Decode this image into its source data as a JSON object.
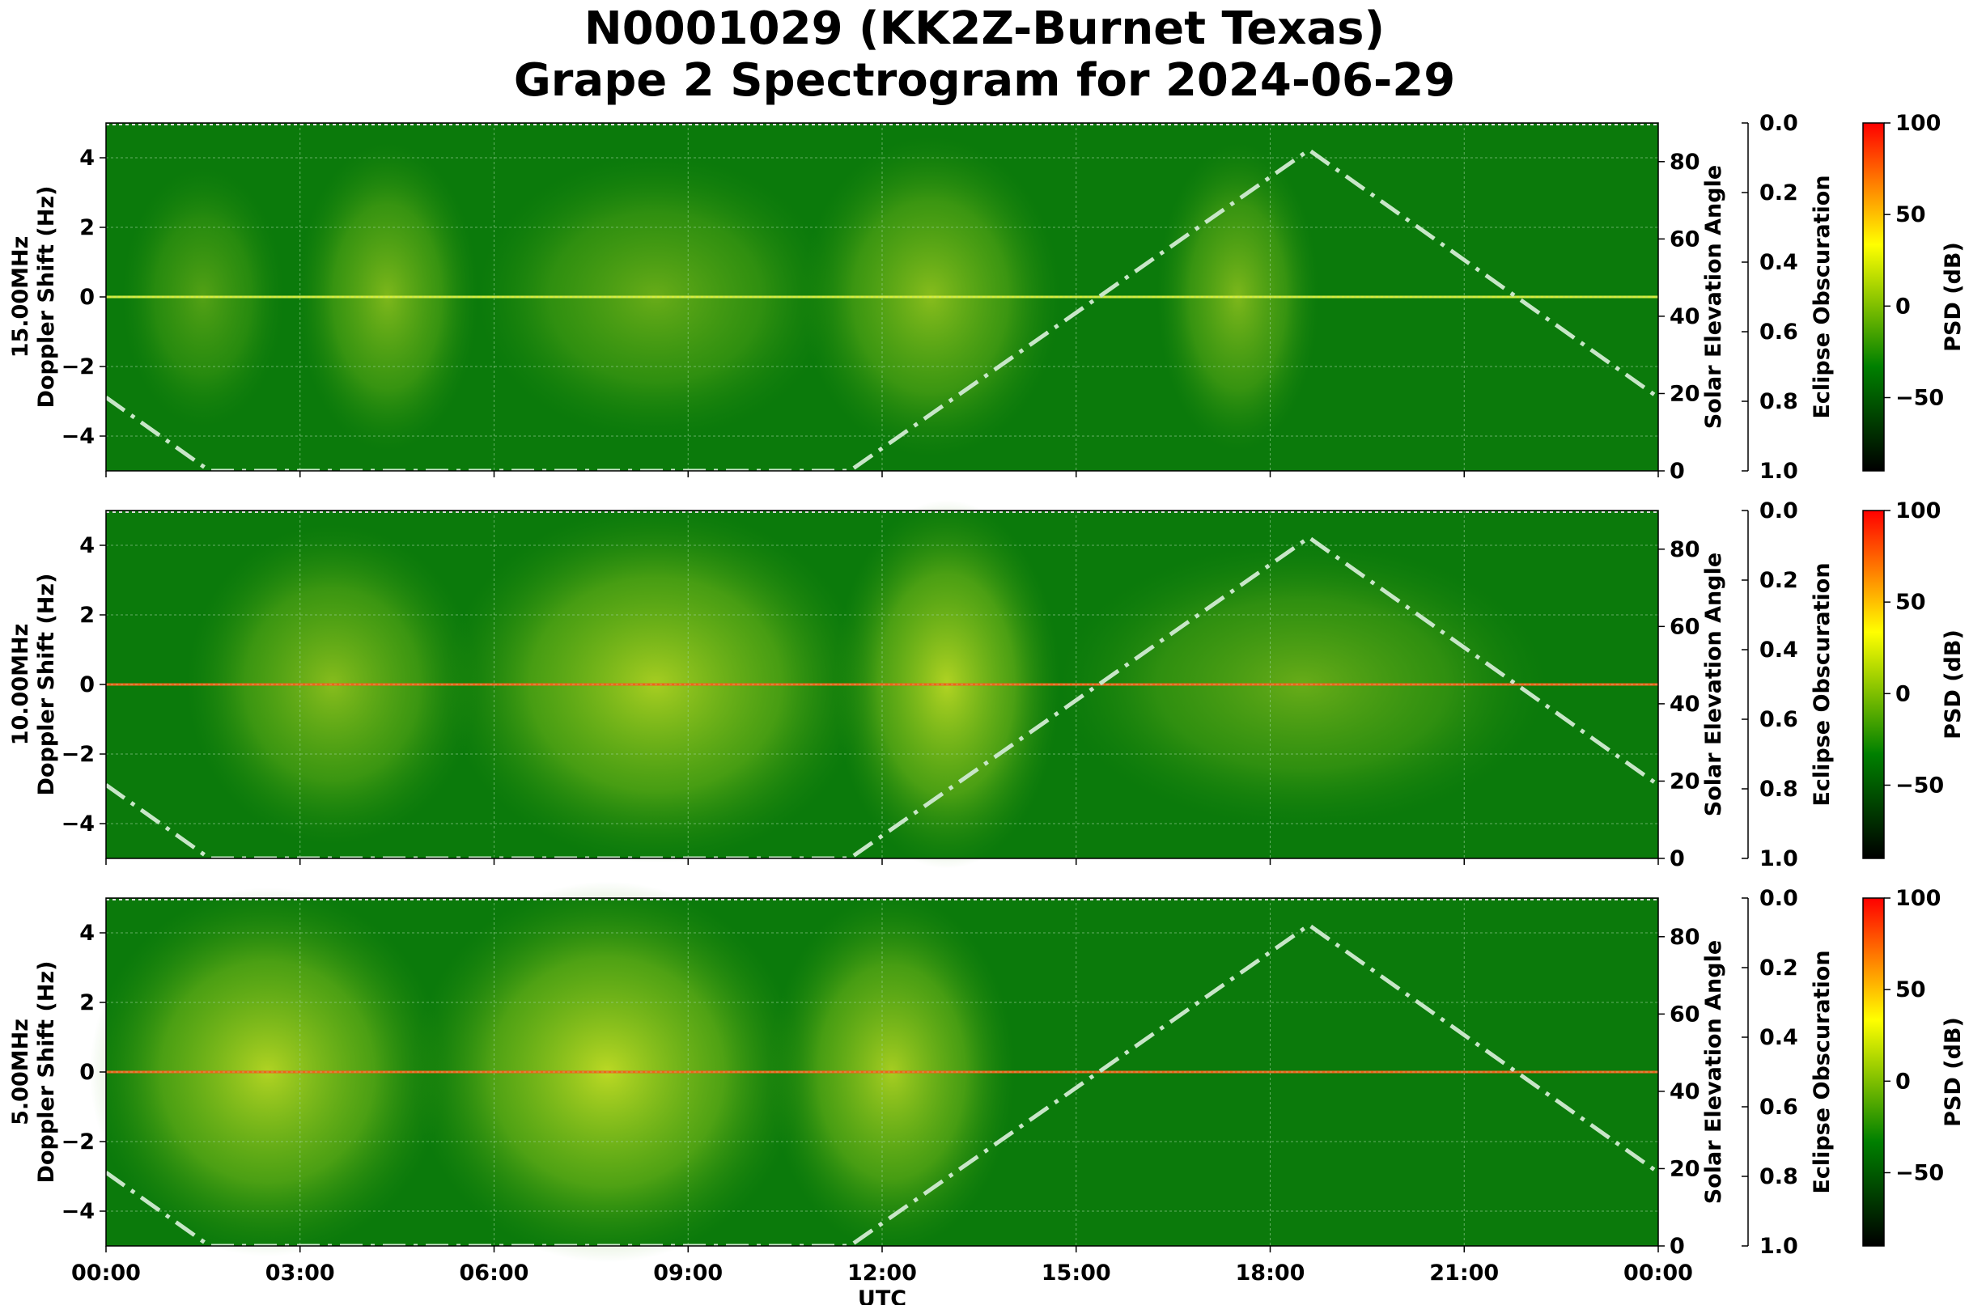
{
  "figure": {
    "title_line1": "N0001029 (KK2Z-Burnet Texas)",
    "title_line2": "Grape 2 Spectrogram for 2024-06-29"
  },
  "chart_data": {
    "type": "heatmap",
    "x_axis": {
      "label": "UTC",
      "range_hours": [
        0,
        24
      ],
      "ticks": [
        "00:00",
        "03:00",
        "06:00",
        "09:00",
        "12:00",
        "15:00",
        "18:00",
        "21:00",
        "00:00"
      ]
    },
    "y_axis": {
      "label": "Doppler Shift (Hz)",
      "range": [
        -5,
        5
      ],
      "ticks": [
        4,
        2,
        0,
        -2,
        -4
      ]
    },
    "right_axis_1": {
      "label": "Solar Elevation Angle",
      "range": [
        0,
        90
      ],
      "ticks": [
        0,
        20,
        40,
        60,
        80
      ]
    },
    "right_axis_2": {
      "label": "Eclipse Obscuration",
      "range": [
        1.0,
        0.0
      ],
      "ticks": [
        "0.0",
        "0.2",
        "0.4",
        "0.6",
        "0.8",
        "1.0"
      ]
    },
    "colorbar": {
      "label": "PSD (dB)",
      "range": [
        -90,
        100
      ],
      "ticks": [
        "100",
        "50",
        "0",
        "−50"
      ],
      "tick_values": [
        100,
        50,
        0,
        -50
      ],
      "colors": [
        "#000000",
        "#008000",
        "#ffff00",
        "#ff0000"
      ]
    },
    "grid": true,
    "solar_elevation_curve": {
      "style": "dash-dot",
      "color": "#c8e6c8",
      "points_hours_degrees": [
        [
          0,
          19
        ],
        [
          1.6,
          0
        ],
        [
          11.5,
          0
        ],
        [
          18.6,
          83
        ],
        [
          24,
          19
        ]
      ]
    },
    "panels": [
      {
        "name": "15.00MHz",
        "ylabel_top": "15.00MHz",
        "carrier_hz": 0,
        "activity": [
          {
            "from_h": 0.5,
            "to_h": 2.5,
            "level": 0.35
          },
          {
            "from_h": 3.2,
            "to_h": 5.5,
            "level": 0.55
          },
          {
            "from_h": 6,
            "to_h": 11,
            "level": 0.45
          },
          {
            "from_h": 11,
            "to_h": 14.5,
            "level": 0.6
          },
          {
            "from_h": 16.5,
            "to_h": 18.5,
            "level": 0.55
          }
        ]
      },
      {
        "name": "10.00MHz",
        "ylabel_top": "10.00MHz",
        "carrier_hz": 0,
        "activity": [
          {
            "from_h": 1.5,
            "to_h": 5.5,
            "level": 0.6
          },
          {
            "from_h": 5.5,
            "to_h": 11.5,
            "level": 0.75
          },
          {
            "from_h": 11.5,
            "to_h": 14.5,
            "level": 0.8
          },
          {
            "from_h": 15,
            "to_h": 22,
            "level": 0.45
          }
        ]
      },
      {
        "name": "5.00MHz",
        "ylabel_top": "5.00MHz",
        "carrier_hz": 0,
        "activity": [
          {
            "from_h": 0,
            "to_h": 5,
            "level": 0.8
          },
          {
            "from_h": 5,
            "to_h": 10.5,
            "level": 0.85
          },
          {
            "from_h": 10.5,
            "to_h": 13.8,
            "level": 0.75
          }
        ]
      }
    ]
  }
}
